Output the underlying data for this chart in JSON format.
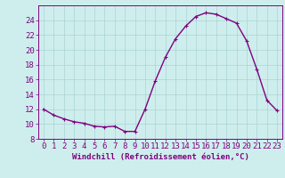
{
  "x_values": [
    0,
    1,
    2,
    3,
    4,
    5,
    6,
    7,
    8,
    9,
    10,
    11,
    12,
    13,
    14,
    15,
    16,
    17,
    18,
    19,
    20,
    21,
    22,
    23
  ],
  "y_values": [
    12.0,
    11.2,
    10.7,
    10.3,
    10.1,
    9.7,
    9.6,
    9.7,
    9.0,
    9.0,
    12.0,
    15.8,
    19.0,
    21.5,
    23.2,
    24.5,
    25.0,
    24.8,
    24.2,
    23.6,
    21.2,
    17.4,
    13.2,
    11.8
  ],
  "line_color": "#800080",
  "marker": "+",
  "marker_size": 3,
  "xlabel": "Windchill (Refroidissement éolien,°C)",
  "xlim": [
    -0.5,
    23.5
  ],
  "ylim": [
    8,
    26
  ],
  "yticks": [
    8,
    10,
    12,
    14,
    16,
    18,
    20,
    22,
    24
  ],
  "xticks": [
    0,
    1,
    2,
    3,
    4,
    5,
    6,
    7,
    8,
    9,
    10,
    11,
    12,
    13,
    14,
    15,
    16,
    17,
    18,
    19,
    20,
    21,
    22,
    23
  ],
  "bg_color": "#ceeeed",
  "grid_color": "#aad4d3",
  "line_width": 1.0,
  "tick_color": "#800080",
  "label_color": "#800080",
  "font_size": 6.5
}
